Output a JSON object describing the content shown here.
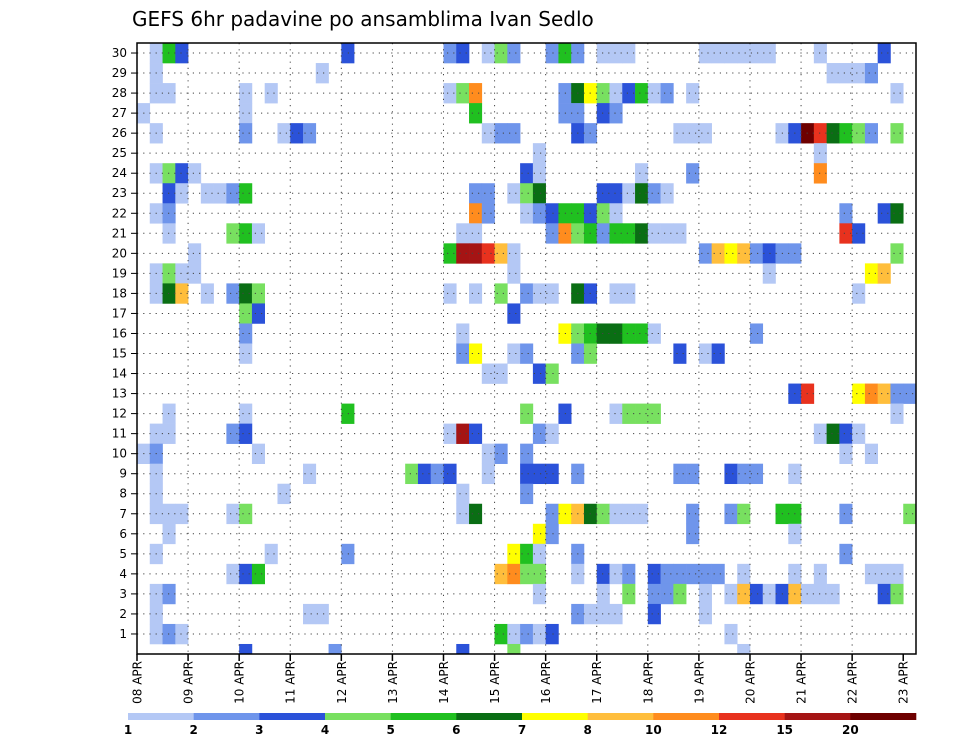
{
  "chart_data": {
    "type": "heatmap",
    "title": "GEFS 6hr padavine po ansamblima Ivan Sedlo",
    "xlabel": "",
    "ylabel": "",
    "x_ticks": [
      "08 APR",
      "09 APR",
      "10 APR",
      "11 APR",
      "12 APR",
      "13 APR",
      "14 APR",
      "15 APR",
      "16 APR",
      "17 APR",
      "18 APR",
      "19 APR",
      "20 APR",
      "21 APR",
      "22 APR",
      "23 APR"
    ],
    "y_ticks": [
      "1",
      "2",
      "3",
      "4",
      "5",
      "6",
      "7",
      "8",
      "9",
      "10",
      "11",
      "12",
      "13",
      "14",
      "15",
      "16",
      "17",
      "18",
      "19",
      "20",
      "21",
      "22",
      "23",
      "24",
      "25",
      "26",
      "27",
      "28",
      "29",
      "30"
    ],
    "members": 30,
    "timesteps": 61,
    "steps_per_day": 4,
    "grid": true,
    "legend": {
      "position": "bottom",
      "labels": [
        "1",
        "2",
        "3",
        "4",
        "5",
        "6",
        "7",
        "8",
        "10",
        "12",
        "15",
        "20"
      ],
      "colors": [
        "#b4c8f5",
        "#6f95eb",
        "#2b52d9",
        "#78e060",
        "#20c020",
        "#0a6e14",
        "#ffff00",
        "#ffbe3c",
        "#ff8c1e",
        "#e8321e",
        "#a51414",
        "#6e0000"
      ]
    },
    "cells": [
      [
        30,
        1,
        1
      ],
      [
        30,
        2,
        5
      ],
      [
        30,
        3,
        3
      ],
      [
        30,
        16,
        3
      ],
      [
        30,
        24,
        2
      ],
      [
        30,
        25,
        3
      ],
      [
        30,
        27,
        1
      ],
      [
        30,
        28,
        4
      ],
      [
        30,
        29,
        2
      ],
      [
        30,
        32,
        2
      ],
      [
        30,
        33,
        5
      ],
      [
        30,
        34,
        2
      ],
      [
        30,
        36,
        1
      ],
      [
        30,
        37,
        1
      ],
      [
        30,
        38,
        1
      ],
      [
        30,
        44,
        1
      ],
      [
        30,
        45,
        1
      ],
      [
        30,
        46,
        1
      ],
      [
        30,
        47,
        1
      ],
      [
        30,
        48,
        1
      ],
      [
        30,
        49,
        1
      ],
      [
        30,
        53,
        1
      ],
      [
        30,
        58,
        3
      ],
      [
        29,
        1,
        1
      ],
      [
        29,
        14,
        1
      ],
      [
        29,
        54,
        1
      ],
      [
        29,
        55,
        1
      ],
      [
        29,
        56,
        1
      ],
      [
        29,
        57,
        2
      ],
      [
        28,
        1,
        1
      ],
      [
        28,
        2,
        1
      ],
      [
        28,
        8,
        1
      ],
      [
        28,
        10,
        1
      ],
      [
        28,
        24,
        1
      ],
      [
        28,
        25,
        4
      ],
      [
        28,
        26,
        9
      ],
      [
        28,
        33,
        2
      ],
      [
        28,
        34,
        6
      ],
      [
        28,
        35,
        7
      ],
      [
        28,
        36,
        4
      ],
      [
        28,
        37,
        1
      ],
      [
        28,
        38,
        3
      ],
      [
        28,
        39,
        5
      ],
      [
        28,
        40,
        1
      ],
      [
        28,
        41,
        2
      ],
      [
        28,
        43,
        1
      ],
      [
        28,
        59,
        1
      ],
      [
        27,
        0,
        1
      ],
      [
        27,
        8,
        1
      ],
      [
        27,
        26,
        5
      ],
      [
        27,
        33,
        2
      ],
      [
        27,
        34,
        2
      ],
      [
        27,
        36,
        3
      ],
      [
        27,
        37,
        2
      ],
      [
        26,
        1,
        1
      ],
      [
        26,
        8,
        2
      ],
      [
        26,
        11,
        1
      ],
      [
        26,
        12,
        3
      ],
      [
        26,
        13,
        2
      ],
      [
        26,
        27,
        1
      ],
      [
        26,
        28,
        2
      ],
      [
        26,
        29,
        2
      ],
      [
        26,
        34,
        3
      ],
      [
        26,
        35,
        2
      ],
      [
        26,
        42,
        1
      ],
      [
        26,
        43,
        1
      ],
      [
        26,
        44,
        1
      ],
      [
        26,
        50,
        1
      ],
      [
        26,
        51,
        3
      ],
      [
        26,
        52,
        12
      ],
      [
        26,
        53,
        10
      ],
      [
        26,
        54,
        6
      ],
      [
        26,
        55,
        5
      ],
      [
        26,
        56,
        4
      ],
      [
        26,
        57,
        2
      ],
      [
        26,
        59,
        4
      ],
      [
        25,
        31,
        1
      ],
      [
        25,
        53,
        1
      ],
      [
        24,
        1,
        1
      ],
      [
        24,
        2,
        4
      ],
      [
        24,
        3,
        3
      ],
      [
        24,
        4,
        1
      ],
      [
        24,
        30,
        3
      ],
      [
        24,
        31,
        1
      ],
      [
        24,
        39,
        1
      ],
      [
        24,
        43,
        2
      ],
      [
        24,
        53,
        9
      ],
      [
        23,
        2,
        3
      ],
      [
        23,
        3,
        1
      ],
      [
        23,
        5,
        1
      ],
      [
        23,
        6,
        1
      ],
      [
        23,
        7,
        2
      ],
      [
        23,
        8,
        5
      ],
      [
        23,
        26,
        2
      ],
      [
        23,
        27,
        2
      ],
      [
        23,
        29,
        1
      ],
      [
        23,
        30,
        4
      ],
      [
        23,
        31,
        6
      ],
      [
        23,
        36,
        3
      ],
      [
        23,
        37,
        3
      ],
      [
        23,
        38,
        1
      ],
      [
        23,
        39,
        6
      ],
      [
        23,
        40,
        2
      ],
      [
        23,
        41,
        1
      ],
      [
        22,
        1,
        1
      ],
      [
        22,
        2,
        2
      ],
      [
        22,
        26,
        9
      ],
      [
        22,
        27,
        2
      ],
      [
        22,
        30,
        1
      ],
      [
        22,
        31,
        2
      ],
      [
        22,
        32,
        3
      ],
      [
        22,
        33,
        5
      ],
      [
        22,
        34,
        5
      ],
      [
        22,
        35,
        3
      ],
      [
        22,
        36,
        4
      ],
      [
        22,
        37,
        1
      ],
      [
        22,
        55,
        2
      ],
      [
        22,
        58,
        3
      ],
      [
        22,
        59,
        6
      ],
      [
        21,
        2,
        1
      ],
      [
        21,
        7,
        4
      ],
      [
        21,
        8,
        5
      ],
      [
        21,
        9,
        1
      ],
      [
        21,
        25,
        1
      ],
      [
        21,
        26,
        1
      ],
      [
        21,
        32,
        2
      ],
      [
        21,
        33,
        9
      ],
      [
        21,
        34,
        4
      ],
      [
        21,
        35,
        5
      ],
      [
        21,
        36,
        2
      ],
      [
        21,
        37,
        5
      ],
      [
        21,
        38,
        5
      ],
      [
        21,
        39,
        6
      ],
      [
        21,
        40,
        1
      ],
      [
        21,
        41,
        1
      ],
      [
        21,
        42,
        1
      ],
      [
        21,
        55,
        10
      ],
      [
        21,
        56,
        3
      ],
      [
        20,
        4,
        1
      ],
      [
        20,
        24,
        5
      ],
      [
        20,
        25,
        11
      ],
      [
        20,
        26,
        11
      ],
      [
        20,
        27,
        10
      ],
      [
        20,
        28,
        8
      ],
      [
        20,
        29,
        1
      ],
      [
        20,
        44,
        2
      ],
      [
        20,
        45,
        8
      ],
      [
        20,
        46,
        7
      ],
      [
        20,
        47,
        8
      ],
      [
        20,
        48,
        2
      ],
      [
        20,
        49,
        3
      ],
      [
        20,
        50,
        2
      ],
      [
        20,
        51,
        2
      ],
      [
        20,
        59,
        4
      ],
      [
        19,
        1,
        1
      ],
      [
        19,
        2,
        4
      ],
      [
        19,
        3,
        1
      ],
      [
        19,
        4,
        1
      ],
      [
        19,
        29,
        1
      ],
      [
        19,
        49,
        1
      ],
      [
        19,
        57,
        7
      ],
      [
        19,
        58,
        8
      ],
      [
        18,
        1,
        1
      ],
      [
        18,
        2,
        6
      ],
      [
        18,
        3,
        8
      ],
      [
        18,
        5,
        1
      ],
      [
        18,
        7,
        2
      ],
      [
        18,
        8,
        6
      ],
      [
        18,
        9,
        4
      ],
      [
        18,
        24,
        1
      ],
      [
        18,
        26,
        1
      ],
      [
        18,
        28,
        4
      ],
      [
        18,
        30,
        2
      ],
      [
        18,
        31,
        1
      ],
      [
        18,
        32,
        1
      ],
      [
        18,
        34,
        6
      ],
      [
        18,
        35,
        3
      ],
      [
        18,
        37,
        1
      ],
      [
        18,
        38,
        1
      ],
      [
        18,
        56,
        1
      ],
      [
        17,
        8,
        4
      ],
      [
        17,
        9,
        3
      ],
      [
        17,
        29,
        3
      ],
      [
        16,
        8,
        2
      ],
      [
        16,
        25,
        1
      ],
      [
        16,
        33,
        7
      ],
      [
        16,
        34,
        4
      ],
      [
        16,
        35,
        5
      ],
      [
        16,
        36,
        6
      ],
      [
        16,
        37,
        6
      ],
      [
        16,
        38,
        5
      ],
      [
        16,
        39,
        5
      ],
      [
        16,
        40,
        1
      ],
      [
        16,
        48,
        2
      ],
      [
        15,
        8,
        1
      ],
      [
        15,
        25,
        2
      ],
      [
        15,
        26,
        7
      ],
      [
        15,
        29,
        1
      ],
      [
        15,
        30,
        2
      ],
      [
        15,
        34,
        2
      ],
      [
        15,
        35,
        4
      ],
      [
        15,
        42,
        3
      ],
      [
        15,
        44,
        1
      ],
      [
        15,
        45,
        3
      ],
      [
        14,
        27,
        1
      ],
      [
        14,
        28,
        1
      ],
      [
        14,
        31,
        3
      ],
      [
        14,
        32,
        4
      ],
      [
        13,
        51,
        3
      ],
      [
        13,
        52,
        10
      ],
      [
        13,
        56,
        7
      ],
      [
        13,
        57,
        9
      ],
      [
        13,
        58,
        8
      ],
      [
        13,
        59,
        2
      ],
      [
        13,
        60,
        2
      ],
      [
        12,
        2,
        1
      ],
      [
        12,
        8,
        1
      ],
      [
        12,
        16,
        5
      ],
      [
        12,
        30,
        4
      ],
      [
        12,
        33,
        3
      ],
      [
        12,
        37,
        1
      ],
      [
        12,
        38,
        4
      ],
      [
        12,
        39,
        4
      ],
      [
        12,
        40,
        4
      ],
      [
        12,
        59,
        1
      ],
      [
        11,
        1,
        1
      ],
      [
        11,
        2,
        1
      ],
      [
        11,
        7,
        2
      ],
      [
        11,
        8,
        3
      ],
      [
        11,
        24,
        1
      ],
      [
        11,
        25,
        11
      ],
      [
        11,
        26,
        3
      ],
      [
        11,
        31,
        2
      ],
      [
        11,
        32,
        1
      ],
      [
        11,
        53,
        1
      ],
      [
        11,
        54,
        6
      ],
      [
        11,
        55,
        3
      ],
      [
        11,
        56,
        1
      ],
      [
        10,
        0,
        1
      ],
      [
        10,
        1,
        2
      ],
      [
        10,
        9,
        1
      ],
      [
        10,
        27,
        1
      ],
      [
        10,
        28,
        2
      ],
      [
        10,
        30,
        2
      ],
      [
        10,
        55,
        1
      ],
      [
        10,
        57,
        1
      ],
      [
        9,
        1,
        1
      ],
      [
        9,
        13,
        1
      ],
      [
        9,
        21,
        4
      ],
      [
        9,
        22,
        3
      ],
      [
        9,
        23,
        2
      ],
      [
        9,
        24,
        3
      ],
      [
        9,
        27,
        1
      ],
      [
        9,
        30,
        3
      ],
      [
        9,
        31,
        3
      ],
      [
        9,
        32,
        3
      ],
      [
        9,
        34,
        2
      ],
      [
        9,
        42,
        2
      ],
      [
        9,
        43,
        2
      ],
      [
        9,
        46,
        3
      ],
      [
        9,
        47,
        2
      ],
      [
        9,
        48,
        2
      ],
      [
        9,
        51,
        1
      ],
      [
        8,
        1,
        1
      ],
      [
        8,
        11,
        1
      ],
      [
        8,
        25,
        1
      ],
      [
        8,
        30,
        2
      ],
      [
        7,
        1,
        1
      ],
      [
        7,
        2,
        1
      ],
      [
        7,
        3,
        1
      ],
      [
        7,
        7,
        1
      ],
      [
        7,
        8,
        4
      ],
      [
        7,
        25,
        1
      ],
      [
        7,
        26,
        6
      ],
      [
        7,
        32,
        2
      ],
      [
        7,
        33,
        7
      ],
      [
        7,
        34,
        8
      ],
      [
        7,
        35,
        6
      ],
      [
        7,
        36,
        4
      ],
      [
        7,
        37,
        1
      ],
      [
        7,
        38,
        1
      ],
      [
        7,
        39,
        1
      ],
      [
        7,
        43,
        2
      ],
      [
        7,
        46,
        2
      ],
      [
        7,
        47,
        4
      ],
      [
        7,
        50,
        5
      ],
      [
        7,
        51,
        5
      ],
      [
        7,
        55,
        2
      ],
      [
        7,
        60,
        4
      ],
      [
        6,
        2,
        1
      ],
      [
        6,
        31,
        7
      ],
      [
        6,
        32,
        2
      ],
      [
        6,
        43,
        2
      ],
      [
        6,
        51,
        1
      ],
      [
        5,
        1,
        1
      ],
      [
        5,
        10,
        1
      ],
      [
        5,
        16,
        2
      ],
      [
        5,
        29,
        7
      ],
      [
        5,
        30,
        5
      ],
      [
        5,
        31,
        1
      ],
      [
        5,
        34,
        2
      ],
      [
        5,
        55,
        2
      ],
      [
        4,
        7,
        1
      ],
      [
        4,
        8,
        3
      ],
      [
        4,
        9,
        5
      ],
      [
        4,
        28,
        8
      ],
      [
        4,
        29,
        9
      ],
      [
        4,
        30,
        4
      ],
      [
        4,
        31,
        4
      ],
      [
        4,
        34,
        1
      ],
      [
        4,
        36,
        3
      ],
      [
        4,
        37,
        1
      ],
      [
        4,
        38,
        2
      ],
      [
        4,
        40,
        3
      ],
      [
        4,
        41,
        2
      ],
      [
        4,
        42,
        2
      ],
      [
        4,
        43,
        2
      ],
      [
        4,
        44,
        2
      ],
      [
        4,
        45,
        2
      ],
      [
        4,
        47,
        1
      ],
      [
        4,
        51,
        1
      ],
      [
        4,
        53,
        1
      ],
      [
        4,
        57,
        1
      ],
      [
        4,
        58,
        1
      ],
      [
        4,
        59,
        1
      ],
      [
        3,
        1,
        1
      ],
      [
        3,
        2,
        2
      ],
      [
        3,
        31,
        1
      ],
      [
        3,
        36,
        1
      ],
      [
        3,
        38,
        4
      ],
      [
        3,
        40,
        2
      ],
      [
        3,
        41,
        2
      ],
      [
        3,
        42,
        4
      ],
      [
        3,
        44,
        1
      ],
      [
        3,
        46,
        1
      ],
      [
        3,
        47,
        8
      ],
      [
        3,
        48,
        3
      ],
      [
        3,
        49,
        1
      ],
      [
        3,
        50,
        3
      ],
      [
        3,
        51,
        8
      ],
      [
        3,
        52,
        1
      ],
      [
        3,
        53,
        1
      ],
      [
        3,
        54,
        1
      ],
      [
        3,
        58,
        3
      ],
      [
        3,
        59,
        4
      ],
      [
        2,
        1,
        1
      ],
      [
        2,
        13,
        1
      ],
      [
        2,
        14,
        1
      ],
      [
        2,
        34,
        2
      ],
      [
        2,
        35,
        1
      ],
      [
        2,
        36,
        1
      ],
      [
        2,
        37,
        1
      ],
      [
        2,
        40,
        3
      ],
      [
        2,
        44,
        1
      ],
      [
        1,
        1,
        1
      ],
      [
        1,
        2,
        2
      ],
      [
        1,
        3,
        1
      ],
      [
        1,
        28,
        5
      ],
      [
        1,
        29,
        1
      ],
      [
        1,
        30,
        2
      ],
      [
        1,
        31,
        1
      ],
      [
        1,
        32,
        3
      ],
      [
        1,
        46,
        1
      ],
      [
        0,
        8,
        3
      ],
      [
        0,
        15,
        2
      ],
      [
        0,
        25,
        3
      ],
      [
        0,
        29,
        4
      ],
      [
        0,
        47,
        1
      ]
    ]
  }
}
